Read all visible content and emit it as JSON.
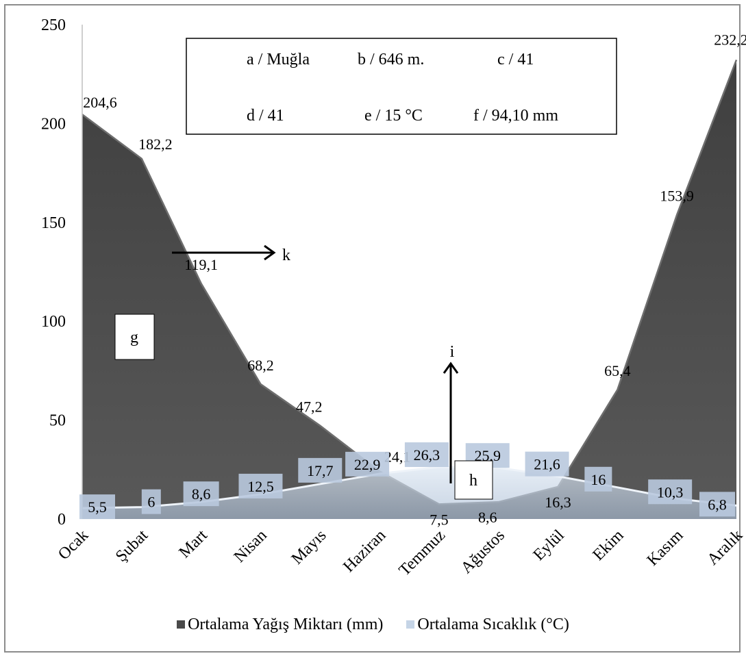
{
  "chart_data": {
    "type": "area",
    "title": "",
    "xlabel": "",
    "ylabel": "",
    "ylim": [
      0,
      250
    ],
    "yticks": [
      0,
      50,
      100,
      150,
      200,
      250
    ],
    "categories": [
      "Ocak",
      "Şubat",
      "Mart",
      "Nisan",
      "Mayıs",
      "Haziran",
      "Temmuz",
      "Ağustos",
      "Eylül",
      "Ekim",
      "Kasım",
      "Aralık"
    ],
    "series": [
      {
        "name": "Ortalama Yağış Miktarı (mm)",
        "values": [
          204.6,
          182.2,
          119.1,
          68.2,
          47.2,
          24.1,
          7.5,
          8.6,
          16.3,
          65.4,
          153.9,
          232.2
        ],
        "labels": [
          "204,6",
          "182,2",
          "119,1",
          "68,2",
          "47,2",
          "24,1",
          "7,5",
          "8,6",
          "16,3",
          "65,4",
          "153,9",
          "232,2"
        ],
        "color": "#4a4a4a"
      },
      {
        "name": "Ortalama Sıcaklık (°C)",
        "values": [
          5.5,
          6,
          8.6,
          12.5,
          17.7,
          22.9,
          26.3,
          25.9,
          21.6,
          16,
          10.3,
          6.8
        ],
        "labels": [
          "5,5",
          "6",
          "8,6",
          "12,5",
          "17,7",
          "22,9",
          "26,3",
          "25,9",
          "21,6",
          "16",
          "10,3",
          "6,8"
        ],
        "color": "#c5d4e6"
      }
    ],
    "legend_position": "bottom",
    "grid": false,
    "info_box": {
      "row1": [
        "a / Muğla",
        "b / 646 m.",
        "c / 41"
      ],
      "row2": [
        "d / 41",
        "e / 15 °C",
        "f / 94,10 mm"
      ]
    },
    "annotations": {
      "g": "g",
      "h": "h",
      "i": "i",
      "k": "k"
    }
  }
}
